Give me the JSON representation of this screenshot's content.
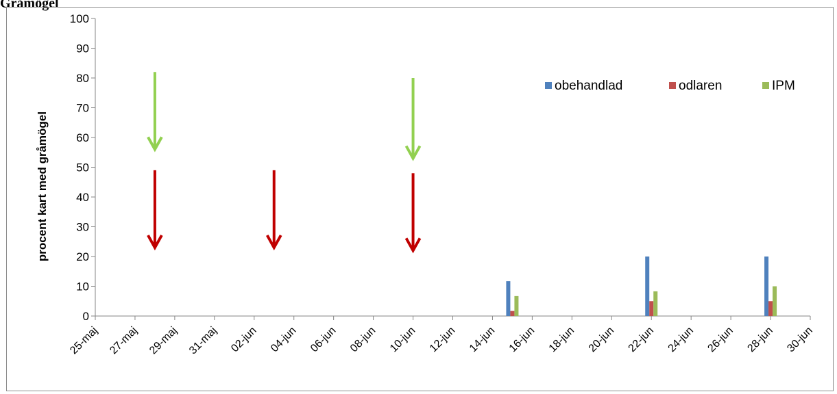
{
  "chart_data": {
    "type": "bar",
    "title": "Gråmögel",
    "ylabel": "procent kart med gråmögel",
    "xlabel": "",
    "ylim": [
      0,
      100
    ],
    "yticks": [
      0,
      10,
      20,
      30,
      40,
      50,
      60,
      70,
      80,
      90,
      100
    ],
    "x_tick_labels": [
      "25-maj",
      "27-maj",
      "29-maj",
      "31-maj",
      "02-jun",
      "04-jun",
      "06-jun",
      "08-jun",
      "10-jun",
      "12-jun",
      "14-jun",
      "16-jun",
      "18-jun",
      "20-jun",
      "22-jun",
      "24-jun",
      "26-jun",
      "28-jun",
      "30-jun"
    ],
    "x_range_days": [
      0,
      36
    ],
    "categories": [
      "15-jun",
      "22-jun",
      "28-jun"
    ],
    "category_day_offsets": [
      21,
      28,
      34
    ],
    "series": [
      {
        "name": "obehandlad",
        "color": "#4f81bd",
        "values": [
          11.7,
          20,
          20
        ]
      },
      {
        "name": "odlaren",
        "color": "#c0504d",
        "values": [
          1.7,
          5,
          5
        ]
      },
      {
        "name": "IPM",
        "color": "#9bbb59",
        "values": [
          6.7,
          8.3,
          10
        ]
      }
    ],
    "legend_position": "top-right",
    "grid": false,
    "annotations": [
      {
        "type": "arrow",
        "color": "#92d050",
        "day": 3,
        "from_y": 82,
        "to_y": 56
      },
      {
        "type": "arrow",
        "color": "#92d050",
        "day": 16,
        "from_y": 80,
        "to_y": 53
      },
      {
        "type": "arrow",
        "color": "#c00000",
        "day": 3,
        "from_y": 49,
        "to_y": 23
      },
      {
        "type": "arrow",
        "color": "#c00000",
        "day": 9,
        "from_y": 49,
        "to_y": 23
      },
      {
        "type": "arrow",
        "color": "#c00000",
        "day": 16,
        "from_y": 48,
        "to_y": 22
      }
    ]
  }
}
